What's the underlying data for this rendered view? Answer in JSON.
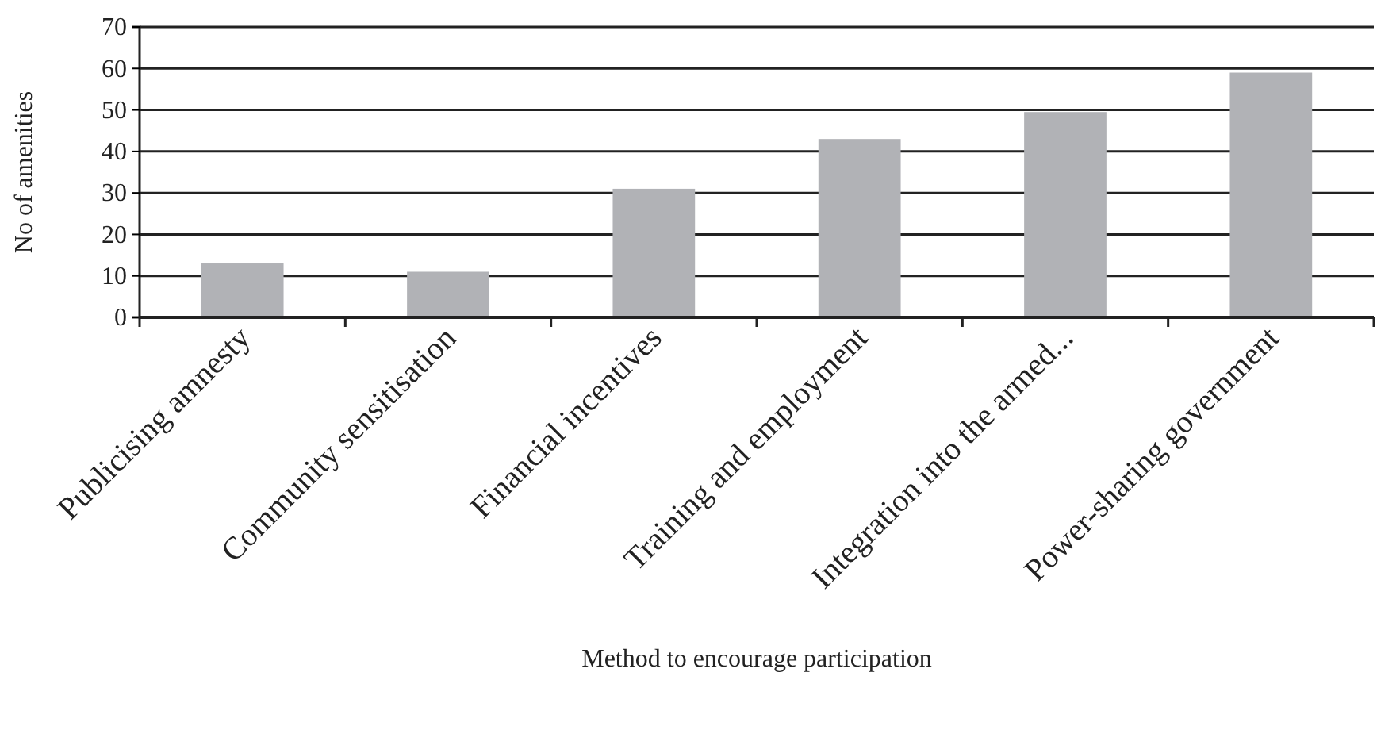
{
  "chart_data": {
    "type": "bar",
    "xlabel": "Method to encourage participation",
    "ylabel": "No of amenities",
    "categories": [
      "Publicising amnesty",
      "Community sensitisation",
      "Financial incentives",
      "Training and employment",
      "Integration into the armed...",
      "Power-sharing government"
    ],
    "values": [
      13,
      11,
      31,
      43,
      49.5,
      59
    ],
    "color": "#b1b2b6",
    "ylim": [
      0,
      70
    ],
    "yticks": [
      0,
      10,
      20,
      30,
      40,
      50,
      60,
      70
    ],
    "grid": "y"
  }
}
